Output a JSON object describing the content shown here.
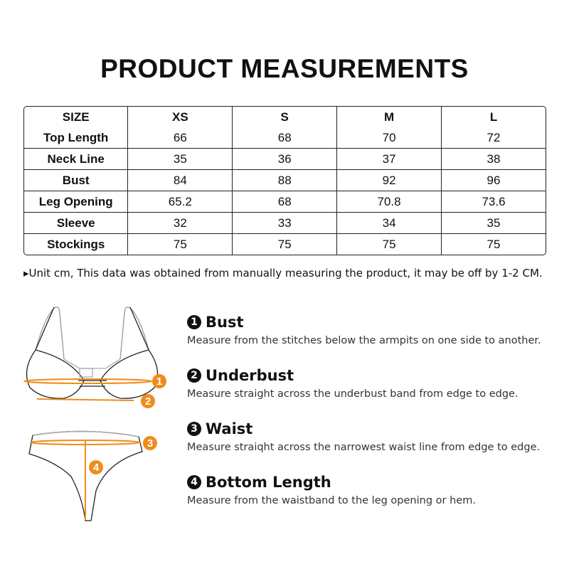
{
  "title": "PRODUCT MEASUREMENTS",
  "table": {
    "headers": [
      "SIZE",
      "XS",
      "S",
      "M",
      "L"
    ],
    "rows": [
      {
        "label": "Top Length",
        "values": [
          "66",
          "68",
          "70",
          "72"
        ]
      },
      {
        "label": "Neck Line",
        "values": [
          "35",
          "36",
          "37",
          "38"
        ]
      },
      {
        "label": "Bust",
        "values": [
          "84",
          "88",
          "92",
          "96"
        ]
      },
      {
        "label": "Leg Opening",
        "values": [
          "65.2",
          "68",
          "70.8",
          "73.6"
        ]
      },
      {
        "label": "Sleeve",
        "values": [
          "32",
          "33",
          "34",
          "35"
        ]
      },
      {
        "label": "Stockings",
        "values": [
          "75",
          "75",
          "75",
          "75"
        ]
      }
    ]
  },
  "note": "▸Unit cm, This data was obtained from manually measuring the product, it may be off by 1-2 CM.",
  "accent": "#f08c1a",
  "guide": [
    {
      "num": "1",
      "title": "Bust",
      "desc": "Measure from the stitches below the armpits on one side to another."
    },
    {
      "num": "2",
      "title": "Underbust",
      "desc": "Measure straight across the underbust band from edge to edge."
    },
    {
      "num": "3",
      "title": "Waist",
      "desc": "Measure straiqht across the narrowest waist line from edge to edge."
    },
    {
      "num": "4",
      "title": "Bottom Length",
      "desc": "Measure from the waistband to the leg opening or hem."
    }
  ]
}
